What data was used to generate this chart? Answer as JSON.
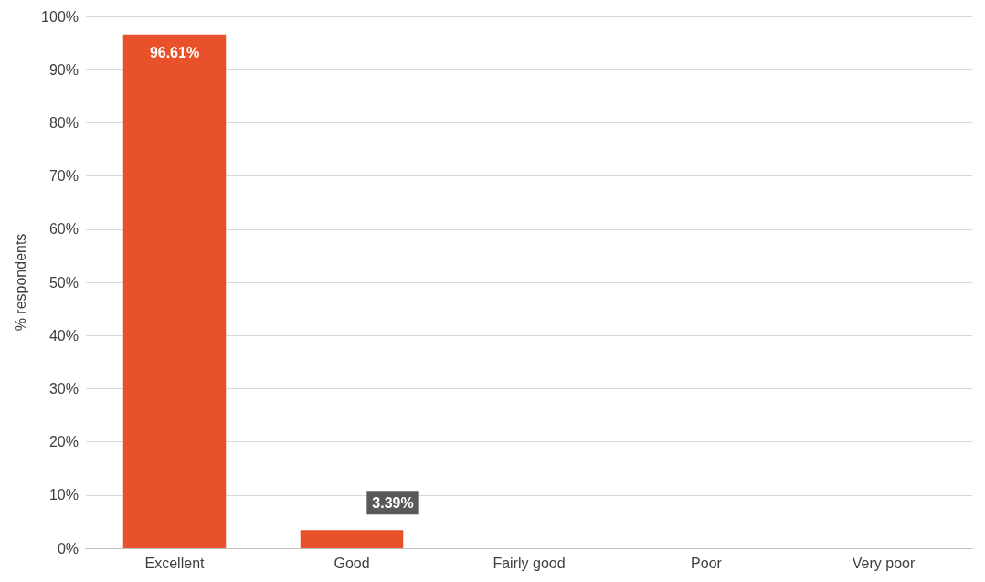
{
  "chart_data": {
    "type": "bar",
    "ylabel": "% respondents",
    "categories": [
      "Excellent",
      "Good",
      "Fairly good",
      "Poor",
      "Very poor"
    ],
    "values": [
      96.61,
      3.39,
      0,
      0,
      0
    ],
    "color": "#e8512a",
    "value_labels": [
      "96.61%",
      "3.39%",
      null,
      null,
      null
    ],
    "ylim": [
      0,
      100
    ],
    "yticks": [
      {
        "value": 0,
        "label": "0%"
      },
      {
        "value": 10,
        "label": "10%"
      },
      {
        "value": 20,
        "label": "20%"
      },
      {
        "value": 30,
        "label": "30%"
      },
      {
        "value": 40,
        "label": "40%"
      },
      {
        "value": 50,
        "label": "50%"
      },
      {
        "value": 60,
        "label": "60%"
      },
      {
        "value": 70,
        "label": "70%"
      },
      {
        "value": 80,
        "label": "80%"
      },
      {
        "value": 90,
        "label": "90%"
      },
      {
        "value": 100,
        "label": "100%"
      }
    ],
    "grid": "y"
  }
}
